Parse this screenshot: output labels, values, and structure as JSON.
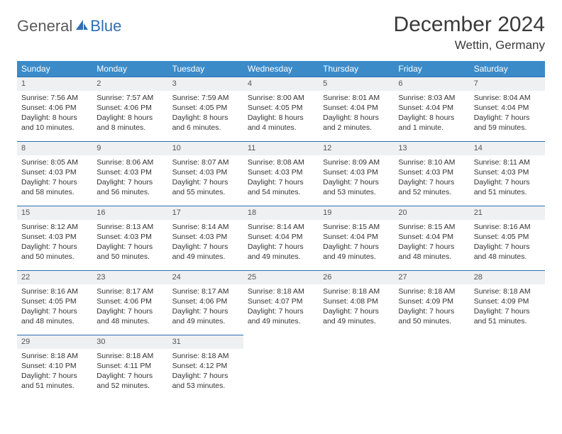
{
  "logo": {
    "text1": "General",
    "text2": "Blue"
  },
  "header": {
    "title": "December 2024",
    "location": "Wettin, Germany"
  },
  "colors": {
    "header_bg": "#3b8bc9",
    "header_text": "#ffffff",
    "daynum_bg": "#eef0f1",
    "row_border": "#2d6fb5",
    "logo_gray": "#5a5a5a",
    "logo_blue": "#2d6fb5"
  },
  "weekdays": [
    "Sunday",
    "Monday",
    "Tuesday",
    "Wednesday",
    "Thursday",
    "Friday",
    "Saturday"
  ],
  "weeks": [
    [
      {
        "n": "1",
        "sunrise": "7:56 AM",
        "sunset": "4:06 PM",
        "daylight": "8 hours and 10 minutes."
      },
      {
        "n": "2",
        "sunrise": "7:57 AM",
        "sunset": "4:06 PM",
        "daylight": "8 hours and 8 minutes."
      },
      {
        "n": "3",
        "sunrise": "7:59 AM",
        "sunset": "4:05 PM",
        "daylight": "8 hours and 6 minutes."
      },
      {
        "n": "4",
        "sunrise": "8:00 AM",
        "sunset": "4:05 PM",
        "daylight": "8 hours and 4 minutes."
      },
      {
        "n": "5",
        "sunrise": "8:01 AM",
        "sunset": "4:04 PM",
        "daylight": "8 hours and 2 minutes."
      },
      {
        "n": "6",
        "sunrise": "8:03 AM",
        "sunset": "4:04 PM",
        "daylight": "8 hours and 1 minute."
      },
      {
        "n": "7",
        "sunrise": "8:04 AM",
        "sunset": "4:04 PM",
        "daylight": "7 hours and 59 minutes."
      }
    ],
    [
      {
        "n": "8",
        "sunrise": "8:05 AM",
        "sunset": "4:03 PM",
        "daylight": "7 hours and 58 minutes."
      },
      {
        "n": "9",
        "sunrise": "8:06 AM",
        "sunset": "4:03 PM",
        "daylight": "7 hours and 56 minutes."
      },
      {
        "n": "10",
        "sunrise": "8:07 AM",
        "sunset": "4:03 PM",
        "daylight": "7 hours and 55 minutes."
      },
      {
        "n": "11",
        "sunrise": "8:08 AM",
        "sunset": "4:03 PM",
        "daylight": "7 hours and 54 minutes."
      },
      {
        "n": "12",
        "sunrise": "8:09 AM",
        "sunset": "4:03 PM",
        "daylight": "7 hours and 53 minutes."
      },
      {
        "n": "13",
        "sunrise": "8:10 AM",
        "sunset": "4:03 PM",
        "daylight": "7 hours and 52 minutes."
      },
      {
        "n": "14",
        "sunrise": "8:11 AM",
        "sunset": "4:03 PM",
        "daylight": "7 hours and 51 minutes."
      }
    ],
    [
      {
        "n": "15",
        "sunrise": "8:12 AM",
        "sunset": "4:03 PM",
        "daylight": "7 hours and 50 minutes."
      },
      {
        "n": "16",
        "sunrise": "8:13 AM",
        "sunset": "4:03 PM",
        "daylight": "7 hours and 50 minutes."
      },
      {
        "n": "17",
        "sunrise": "8:14 AM",
        "sunset": "4:03 PM",
        "daylight": "7 hours and 49 minutes."
      },
      {
        "n": "18",
        "sunrise": "8:14 AM",
        "sunset": "4:04 PM",
        "daylight": "7 hours and 49 minutes."
      },
      {
        "n": "19",
        "sunrise": "8:15 AM",
        "sunset": "4:04 PM",
        "daylight": "7 hours and 49 minutes."
      },
      {
        "n": "20",
        "sunrise": "8:15 AM",
        "sunset": "4:04 PM",
        "daylight": "7 hours and 48 minutes."
      },
      {
        "n": "21",
        "sunrise": "8:16 AM",
        "sunset": "4:05 PM",
        "daylight": "7 hours and 48 minutes."
      }
    ],
    [
      {
        "n": "22",
        "sunrise": "8:16 AM",
        "sunset": "4:05 PM",
        "daylight": "7 hours and 48 minutes."
      },
      {
        "n": "23",
        "sunrise": "8:17 AM",
        "sunset": "4:06 PM",
        "daylight": "7 hours and 48 minutes."
      },
      {
        "n": "24",
        "sunrise": "8:17 AM",
        "sunset": "4:06 PM",
        "daylight": "7 hours and 49 minutes."
      },
      {
        "n": "25",
        "sunrise": "8:18 AM",
        "sunset": "4:07 PM",
        "daylight": "7 hours and 49 minutes."
      },
      {
        "n": "26",
        "sunrise": "8:18 AM",
        "sunset": "4:08 PM",
        "daylight": "7 hours and 49 minutes."
      },
      {
        "n": "27",
        "sunrise": "8:18 AM",
        "sunset": "4:09 PM",
        "daylight": "7 hours and 50 minutes."
      },
      {
        "n": "28",
        "sunrise": "8:18 AM",
        "sunset": "4:09 PM",
        "daylight": "7 hours and 51 minutes."
      }
    ],
    [
      {
        "n": "29",
        "sunrise": "8:18 AM",
        "sunset": "4:10 PM",
        "daylight": "7 hours and 51 minutes."
      },
      {
        "n": "30",
        "sunrise": "8:18 AM",
        "sunset": "4:11 PM",
        "daylight": "7 hours and 52 minutes."
      },
      {
        "n": "31",
        "sunrise": "8:18 AM",
        "sunset": "4:12 PM",
        "daylight": "7 hours and 53 minutes."
      },
      null,
      null,
      null,
      null
    ]
  ],
  "labels": {
    "sunrise": "Sunrise:",
    "sunset": "Sunset:",
    "daylight": "Daylight:"
  }
}
